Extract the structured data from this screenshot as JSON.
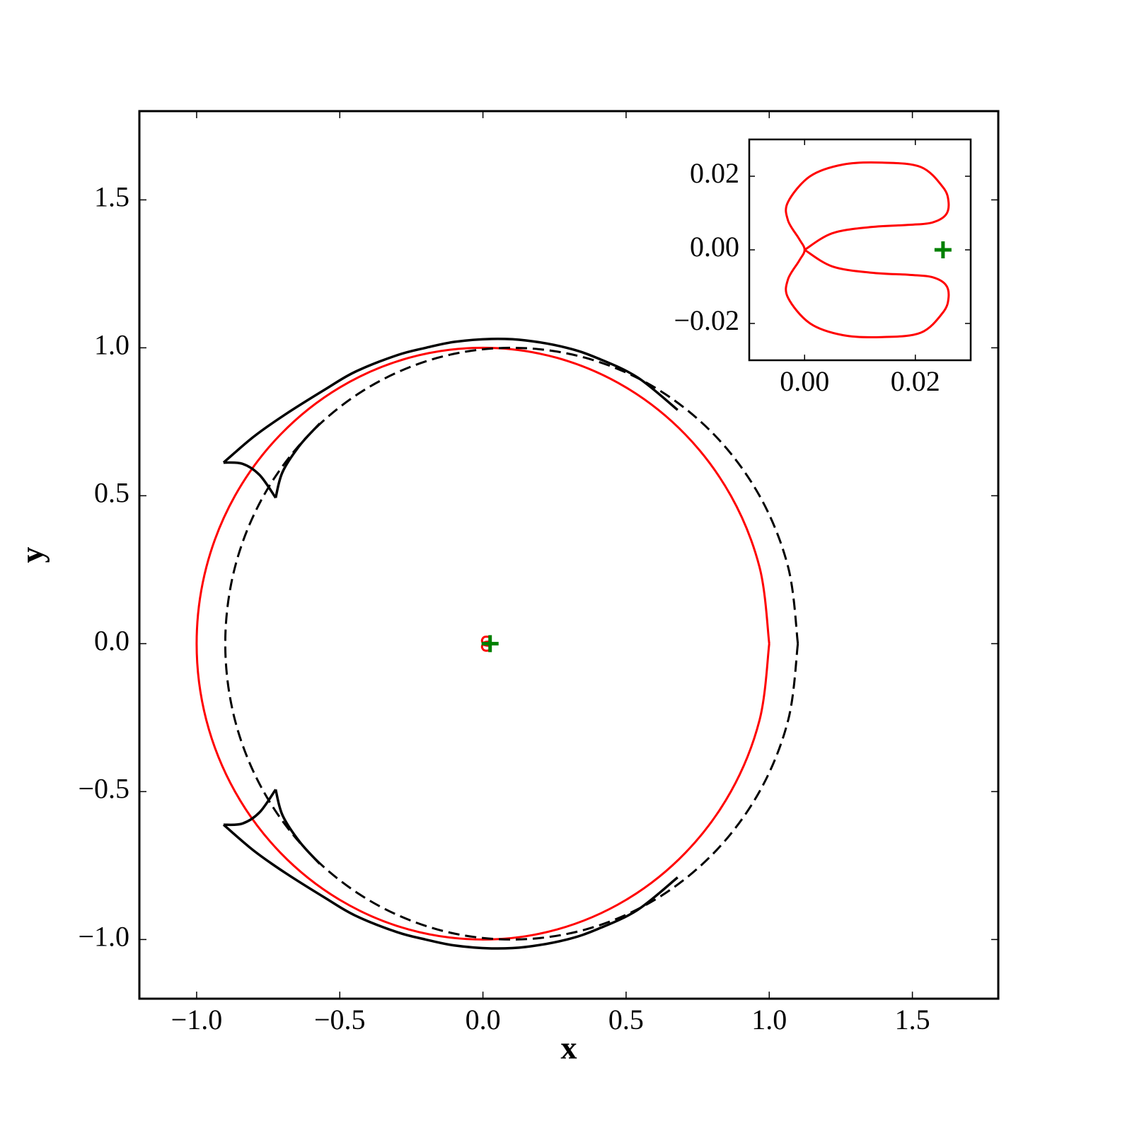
{
  "chart_data": [
    {
      "type": "line",
      "xlabel": "x",
      "ylabel": "y",
      "xlim": [
        -1.2,
        1.8
      ],
      "ylim": [
        -1.2,
        1.8
      ],
      "xticks": [
        {
          "value": -1.0,
          "label": "−1.0"
        },
        {
          "value": -0.5,
          "label": "−0.5"
        },
        {
          "value": 0.0,
          "label": "0.0"
        },
        0.5,
        {
          "value": 1.0,
          "label": "1.0"
        },
        1.5
      ],
      "yticks": [
        {
          "value": -1.0,
          "label": "−1.0"
        },
        {
          "value": -0.5,
          "label": "−0.5"
        },
        {
          "value": 0.0,
          "label": "0.0"
        },
        0.5,
        {
          "value": 1.0,
          "label": "1.0"
        },
        1.5
      ],
      "series": [
        {
          "color": "#ff0000",
          "linestyle": "solid",
          "x": [
            1,
            0.966,
            0.866,
            0.707,
            0.5,
            0.259,
            0,
            -0.259,
            -0.5,
            -0.707,
            -0.866,
            -0.966,
            -1,
            -0.966,
            -0.866,
            -0.707,
            -0.5,
            -0.259,
            0,
            0.259,
            0.5,
            0.707,
            0.866,
            0.966,
            1
          ],
          "y": [
            0,
            0.259,
            0.5,
            0.707,
            0.866,
            0.966,
            1,
            0.966,
            0.866,
            0.707,
            0.5,
            0.259,
            0,
            -0.259,
            -0.5,
            -0.707,
            -0.866,
            -0.966,
            -1,
            -0.966,
            -0.866,
            -0.707,
            -0.5,
            -0.259,
            0
          ]
        },
        {
          "color": "#000000",
          "linestyle": "dashed",
          "x": [
            1.1,
            1.066,
            0.966,
            0.807,
            0.6,
            0.359,
            0.1,
            -0.159,
            -0.4,
            -0.607,
            -0.766,
            -0.866,
            -0.9,
            -0.866,
            -0.766,
            -0.607,
            -0.4,
            -0.159,
            0.1,
            0.359,
            0.6,
            0.807,
            0.966,
            1.066,
            1.1
          ],
          "y": [
            0,
            0.259,
            0.5,
            0.707,
            0.866,
            0.966,
            1,
            0.966,
            0.866,
            0.707,
            0.5,
            0.259,
            0,
            -0.259,
            -0.5,
            -0.707,
            -0.866,
            -0.966,
            -1,
            -0.966,
            -0.866,
            -0.707,
            -0.5,
            -0.259,
            0
          ]
        },
        {
          "color": "#000000",
          "linestyle": "solid",
          "x": [
            -0.906,
            -0.8,
            -0.69,
            -0.55,
            -0.446,
            -0.3,
            -0.2,
            -0.1,
            0.03,
            0.15,
            0.293,
            0.4,
            0.54,
            0.68,
            null,
            -0.906,
            -0.84,
            -0.78,
            -0.724,
            null,
            -0.724,
            -0.7,
            -0.64,
            -0.57,
            null,
            -0.906,
            -0.8,
            -0.69,
            -0.55,
            -0.446,
            -0.3,
            -0.2,
            -0.1,
            0.03,
            0.15,
            0.293,
            0.4,
            0.54,
            0.68,
            null,
            -0.906,
            -0.84,
            -0.78,
            -0.724,
            null,
            -0.724,
            -0.7,
            -0.64,
            -0.57
          ],
          "y": [
            0.612,
            0.7,
            0.775,
            0.86,
            0.919,
            0.975,
            1.0,
            1.02,
            1.03,
            1.025,
            1.0,
            0.965,
            0.9,
            0.79,
            null,
            0.612,
            0.608,
            0.57,
            0.493,
            null,
            0.493,
            0.58,
            0.67,
            0.744,
            null,
            -0.612,
            -0.7,
            -0.775,
            -0.86,
            -0.919,
            -0.975,
            -1.0,
            -1.02,
            -1.03,
            -1.025,
            -1.0,
            -0.965,
            -0.9,
            -0.79,
            null,
            -0.612,
            -0.608,
            -0.57,
            -0.493,
            null,
            -0.493,
            -0.58,
            -0.67,
            -0.744
          ]
        },
        {
          "color": "#ff0000",
          "linestyle": "solid",
          "x": [
            0,
            0.005,
            0.012,
            0.019,
            0.023,
            0.0255,
            0.026,
            0.025,
            0.021,
            0.014,
            0.007,
            0.001,
            -0.003,
            -0.003,
            -0.001,
            0,
            -0.001,
            -0.003,
            -0.003,
            0.001,
            0.007,
            0.014,
            0.021,
            0.025,
            0.026,
            0.0255,
            0.023,
            0.019,
            0.012,
            0.005,
            0
          ],
          "y": [
            0,
            0.0045,
            0.0062,
            0.0068,
            0.0074,
            0.0095,
            0.013,
            0.017,
            0.0225,
            0.0237,
            0.0232,
            0.02,
            0.013,
            0.008,
            0.003,
            0,
            -0.003,
            -0.008,
            -0.013,
            -0.02,
            -0.0232,
            -0.0237,
            -0.0225,
            -0.017,
            -0.013,
            -0.0095,
            -0.0074,
            -0.0068,
            -0.0062,
            -0.0045,
            0
          ]
        },
        {
          "type": "scatter",
          "marker": "+",
          "color": "#008000",
          "x": [
            0.025
          ],
          "y": [
            0
          ]
        }
      ]
    },
    {
      "type": "line",
      "xlim": [
        -0.01,
        0.03
      ],
      "ylim": [
        -0.03,
        0.03
      ],
      "xticks": [
        {
          "value": 0.0,
          "label": "0.00"
        },
        {
          "value": 0.02,
          "label": "0.02"
        }
      ],
      "yticks": [
        {
          "value": -0.02,
          "label": "−0.02"
        },
        {
          "value": 0.0,
          "label": "0.00"
        },
        {
          "value": 0.02,
          "label": "0.02"
        }
      ],
      "series": [
        {
          "color": "#ff0000",
          "linestyle": "solid",
          "x": [
            0,
            0.005,
            0.012,
            0.019,
            0.023,
            0.0255,
            0.026,
            0.025,
            0.021,
            0.014,
            0.007,
            0.001,
            -0.003,
            -0.003,
            -0.001,
            0,
            -0.001,
            -0.003,
            -0.003,
            0.001,
            0.007,
            0.014,
            0.021,
            0.025,
            0.026,
            0.0255,
            0.023,
            0.019,
            0.012,
            0.005,
            0
          ],
          "y": [
            0,
            0.0045,
            0.0062,
            0.0068,
            0.0074,
            0.0095,
            0.013,
            0.017,
            0.0225,
            0.0237,
            0.0232,
            0.02,
            0.013,
            0.008,
            0.003,
            0,
            -0.003,
            -0.008,
            -0.013,
            -0.02,
            -0.0232,
            -0.0237,
            -0.0225,
            -0.017,
            -0.013,
            -0.0095,
            -0.0074,
            -0.0068,
            -0.0062,
            -0.0045,
            0
          ]
        },
        {
          "type": "scatter",
          "marker": "+",
          "color": "#008000",
          "x": [
            0.025
          ],
          "y": [
            0
          ]
        }
      ]
    }
  ]
}
